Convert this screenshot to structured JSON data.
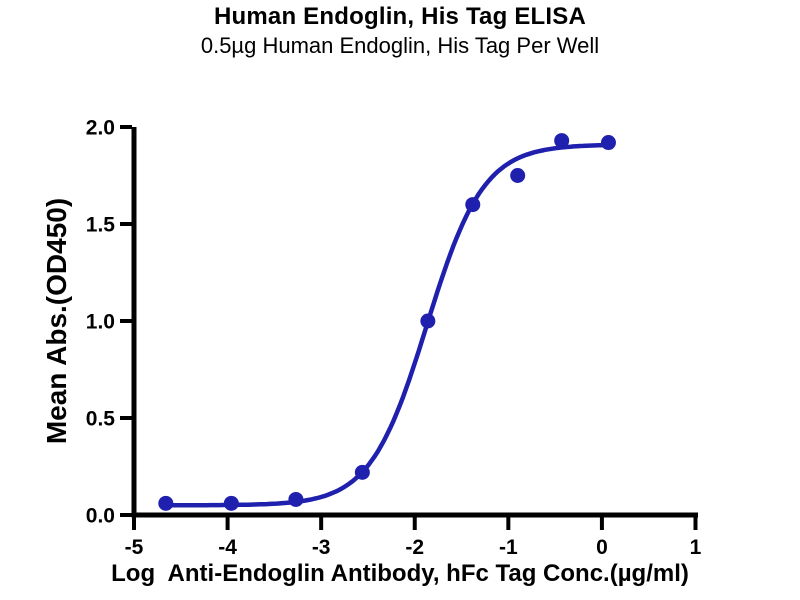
{
  "chart_data": {
    "type": "scatter",
    "title": "Human Endoglin, His Tag ELISA",
    "subtitle": "0.5µg Human Endoglin, His Tag Per Well",
    "xlabel": "Log  Anti-Endoglin Antibody, hFc Tag Conc.(µg/ml)",
    "ylabel": "Mean Abs.(OD450)",
    "xlim": [
      -5,
      1
    ],
    "ylim": [
      0,
      2
    ],
    "xticks": [
      -5,
      -4,
      -3,
      -2,
      -1,
      0,
      1
    ],
    "xtick_labels": [
      "-5",
      "-4",
      "-3",
      "-2",
      "-1",
      "0",
      "1"
    ],
    "yticks": [
      0,
      0.5,
      1,
      1.5,
      2
    ],
    "ytick_labels": [
      "0.0",
      "0.5",
      "1.0",
      "1.5",
      "2.0"
    ],
    "grid": false,
    "legend": null,
    "axis_color": "#000000",
    "background": "#ffffff",
    "series": [
      {
        "name": "Anti-Endoglin Antibody, hFc Tag",
        "color": "#1f20ae",
        "marker": "circle",
        "points": [
          {
            "x": -4.66,
            "y": 0.06
          },
          {
            "x": -3.96,
            "y": 0.06
          },
          {
            "x": -3.27,
            "y": 0.08
          },
          {
            "x": -2.56,
            "y": 0.22
          },
          {
            "x": -1.86,
            "y": 1.0
          },
          {
            "x": -1.38,
            "y": 1.6
          },
          {
            "x": -0.9,
            "y": 1.75
          },
          {
            "x": -0.43,
            "y": 1.93
          },
          {
            "x": 0.07,
            "y": 1.92
          }
        ],
        "fit_curve": {
          "model": "4PL sigmoid",
          "bottom": 0.05,
          "top": 1.91,
          "log_ec50": -1.87,
          "hill_slope": 1.44,
          "x_start": -4.66,
          "x_end": 0.07
        }
      }
    ]
  }
}
